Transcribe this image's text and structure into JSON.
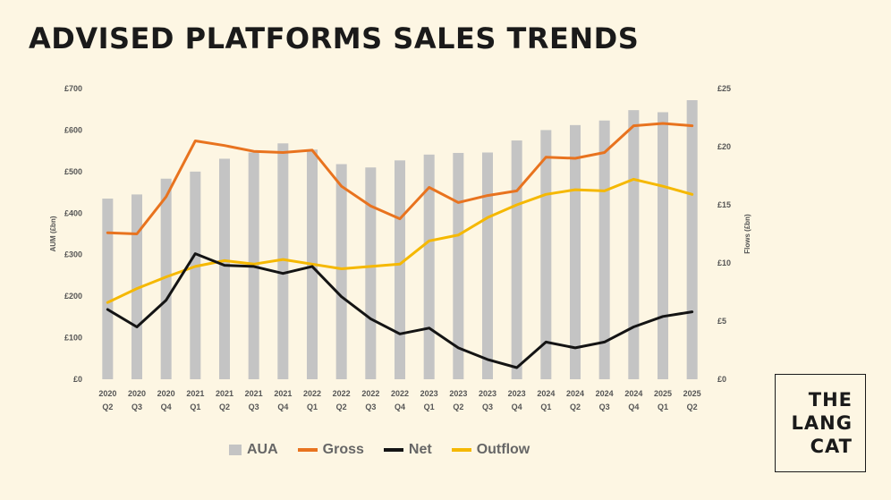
{
  "title": "ADVISED PLATFORMS SALES TRENDS",
  "logo": {
    "lines": [
      "THE",
      "LANG",
      "CAT"
    ]
  },
  "chart_data": {
    "type": "bar",
    "categories": [
      [
        "2020",
        "Q2"
      ],
      [
        "2020",
        "Q3"
      ],
      [
        "2020",
        "Q4"
      ],
      [
        "2021",
        "Q1"
      ],
      [
        "2021",
        "Q2"
      ],
      [
        "2021",
        "Q3"
      ],
      [
        "2021",
        "Q4"
      ],
      [
        "2022",
        "Q1"
      ],
      [
        "2022",
        "Q2"
      ],
      [
        "2022",
        "Q3"
      ],
      [
        "2022",
        "Q4"
      ],
      [
        "2023",
        "Q1"
      ],
      [
        "2023",
        "Q2"
      ],
      [
        "2023",
        "Q3"
      ],
      [
        "2023",
        "Q4"
      ],
      [
        "2024",
        "Q1"
      ],
      [
        "2024",
        "Q2"
      ],
      [
        "2024",
        "Q3"
      ],
      [
        "2024",
        "Q4"
      ],
      [
        "2025",
        "Q1"
      ],
      [
        "2025",
        "Q2"
      ]
    ],
    "ylabel": "AUM (£bn)",
    "y2label": "Flows (£bn)",
    "ylim": [
      0,
      700
    ],
    "y2lim": [
      0,
      25
    ],
    "y_ticks": [
      "£0",
      "£100",
      "£200",
      "£300",
      "£400",
      "£500",
      "£600",
      "£700"
    ],
    "y2_ticks": [
      "£0",
      "£5",
      "£10",
      "£15",
      "£20",
      "£25"
    ],
    "series": [
      {
        "name": "AUA",
        "type": "bar",
        "axis": "left",
        "color": "#c4c4c4",
        "values": [
          435,
          445,
          483,
          500,
          531,
          546,
          568,
          553,
          518,
          510,
          527,
          541,
          545,
          546,
          575,
          600,
          612,
          623,
          648,
          643,
          672
        ]
      },
      {
        "name": "Gross",
        "type": "line",
        "axis": "right",
        "color": "#e8731f",
        "values": [
          12.6,
          12.5,
          15.7,
          20.5,
          20.1,
          19.6,
          19.5,
          19.7,
          16.6,
          14.9,
          13.8,
          16.5,
          15.2,
          15.8,
          16.2,
          19.1,
          19.0,
          19.5,
          21.8,
          22.0,
          21.8
        ]
      },
      {
        "name": "Net",
        "type": "line",
        "axis": "right",
        "color": "#141414",
        "values": [
          6.0,
          4.5,
          6.8,
          10.8,
          9.8,
          9.7,
          9.1,
          9.7,
          7.1,
          5.2,
          3.9,
          4.4,
          2.7,
          1.7,
          1.0,
          3.2,
          2.7,
          3.2,
          4.5,
          5.4,
          5.8
        ]
      },
      {
        "name": "Outflow",
        "type": "line",
        "axis": "right",
        "color": "#f5b800",
        "values": [
          6.6,
          7.8,
          8.8,
          9.7,
          10.2,
          9.9,
          10.3,
          9.9,
          9.5,
          9.7,
          9.9,
          11.9,
          12.4,
          13.9,
          15.0,
          15.9,
          16.3,
          16.2,
          17.2,
          16.6,
          15.9
        ]
      }
    ],
    "legend_position": "bottom",
    "grid": false
  }
}
